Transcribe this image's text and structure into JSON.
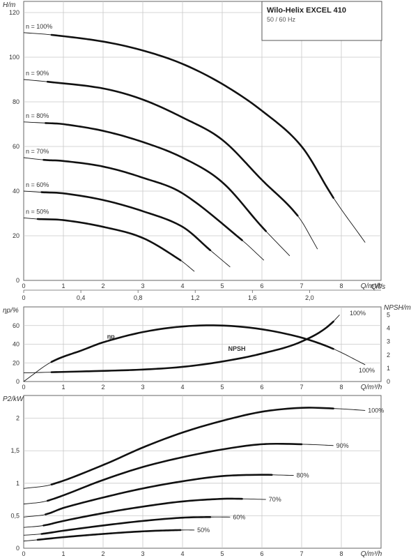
{
  "title_box": {
    "title": "Wilo-Helix EXCEL 410",
    "subtitle": "50 / 60 Hz"
  },
  "chart_data": [
    {
      "type": "line",
      "panel": "head",
      "ylabel": "H/m",
      "xlabel": "Q/m³/h",
      "x_ticks": [
        "0",
        "1",
        "2",
        "3",
        "4",
        "5",
        "6",
        "7",
        "8"
      ],
      "y_ticks": [
        "0",
        "20",
        "40",
        "60",
        "80",
        "100",
        "120"
      ],
      "secondary_x_label": "Q/l/s",
      "secondary_x_ticks": [
        "0",
        "0,4",
        "0,8",
        "1,2",
        "1,6",
        "2,0"
      ],
      "xlim": [
        0,
        9
      ],
      "ylim": [
        0,
        125
      ],
      "grid": true,
      "series": [
        {
          "name": "n = 100%",
          "x": [
            0,
            0.7,
            2,
            3,
            4,
            5,
            6,
            7,
            7.8,
            8.6
          ],
          "y": [
            111,
            110,
            107,
            103,
            97,
            88,
            76,
            60,
            37,
            17
          ],
          "bold_range": [
            0.7,
            7.8
          ]
        },
        {
          "name": "n = 90%",
          "x": [
            0,
            0.6,
            2,
            3,
            4,
            5,
            6,
            6.9,
            7.4
          ],
          "y": [
            90,
            89,
            86,
            81,
            73,
            63,
            45,
            29,
            14
          ],
          "bold_range": [
            0.6,
            6.9
          ]
        },
        {
          "name": "n = 80%",
          "x": [
            0,
            0.55,
            1,
            2,
            3,
            4,
            5,
            6,
            6.7
          ],
          "y": [
            71,
            70.5,
            70,
            67,
            62,
            55,
            44,
            24,
            11
          ],
          "bold_range": [
            0.55,
            6.1
          ]
        },
        {
          "name": "n = 70%",
          "x": [
            0,
            0.5,
            1,
            2,
            3,
            4,
            5.5,
            6.05
          ],
          "y": [
            55,
            54,
            53.5,
            51,
            46,
            39,
            18,
            9
          ],
          "bold_range": [
            0.5,
            5.5
          ]
        },
        {
          "name": "n = 60%",
          "x": [
            0,
            0.45,
            1,
            2,
            3,
            4,
            4.7,
            5.2
          ],
          "y": [
            40,
            39.5,
            39,
            36,
            31,
            24,
            13.5,
            6
          ],
          "bold_range": [
            0.45,
            4.7
          ]
        },
        {
          "name": "n = 50%",
          "x": [
            0,
            0.35,
            1,
            2,
            3,
            3.95,
            4.3
          ],
          "y": [
            28,
            27.5,
            27,
            24,
            19,
            9,
            4
          ],
          "bold_range": [
            0.35,
            3.95
          ]
        }
      ]
    },
    {
      "type": "line",
      "panel": "efficiency_npsh",
      "ylabel": "ηp/%",
      "ylabel_right": "NPSH/m",
      "xlabel": "Q/m³/h",
      "x_ticks": [
        "0",
        "1",
        "2",
        "3",
        "4",
        "5",
        "6",
        "7",
        "8"
      ],
      "y_ticks": [
        "0",
        "20",
        "40",
        "60"
      ],
      "y2_ticks": [
        "0",
        "1",
        "2",
        "3",
        "4",
        "5"
      ],
      "xlim": [
        0,
        9
      ],
      "ylim": [
        0,
        80
      ],
      "y2lim": [
        0,
        5.6
      ],
      "series": [
        {
          "name": "ηp",
          "axis": "left",
          "x": [
            0,
            0.7,
            1.5,
            2,
            3,
            4,
            5,
            6,
            7,
            7.8,
            8.6
          ],
          "y": [
            0,
            21,
            34,
            42,
            53,
            59,
            60,
            56,
            47,
            35,
            18
          ],
          "bold_range": [
            0.7,
            7.8
          ],
          "end_label": "100%"
        },
        {
          "name": "NPSH",
          "axis": "right",
          "x": [
            0,
            0.7,
            2,
            3,
            4,
            5,
            6,
            7,
            7.8,
            8.6
          ],
          "y": [
            0.65,
            0.7,
            0.8,
            0.9,
            1.1,
            1.5,
            2.1,
            3.0,
            4.5,
            7.6
          ],
          "bold_range": [
            0.7,
            7.8
          ],
          "end_label": "100%"
        }
      ]
    },
    {
      "type": "line",
      "panel": "power",
      "ylabel": "P2/kW",
      "xlabel": "Q/m³/h",
      "x_ticks": [
        "0",
        "1",
        "2",
        "3",
        "4",
        "5",
        "6",
        "7",
        "8"
      ],
      "y_ticks": [
        "0",
        "0,5",
        "1",
        "1,5",
        "2"
      ],
      "xlim": [
        0,
        9
      ],
      "ylim": [
        0,
        2.35
      ],
      "series": [
        {
          "name": "100%",
          "x": [
            0,
            0.7,
            2,
            3,
            4,
            5,
            6,
            7,
            7.8,
            8.6
          ],
          "y": [
            0.92,
            0.98,
            1.28,
            1.55,
            1.78,
            1.96,
            2.1,
            2.16,
            2.15,
            2.12
          ],
          "bold_range": [
            0.7,
            7.8
          ]
        },
        {
          "name": "90%",
          "x": [
            0,
            0.6,
            2,
            3,
            4,
            5,
            6,
            7,
            7.8
          ],
          "y": [
            0.68,
            0.73,
            1.05,
            1.25,
            1.4,
            1.52,
            1.6,
            1.6,
            1.58
          ],
          "bold_range": [
            0.6,
            7.0
          ]
        },
        {
          "name": "80%",
          "x": [
            0,
            0.55,
            1,
            2,
            3,
            4,
            5,
            6,
            6.8
          ],
          "y": [
            0.48,
            0.52,
            0.62,
            0.78,
            0.92,
            1.03,
            1.11,
            1.13,
            1.12
          ],
          "bold_range": [
            0.55,
            6.25
          ]
        },
        {
          "name": "70%",
          "x": [
            0,
            0.5,
            1,
            2,
            3,
            4,
            5,
            5.5,
            6.1
          ],
          "y": [
            0.32,
            0.35,
            0.42,
            0.54,
            0.64,
            0.72,
            0.76,
            0.76,
            0.75
          ],
          "bold_range": [
            0.5,
            5.5
          ]
        },
        {
          "name": "60%",
          "x": [
            0,
            0.45,
            1,
            2,
            3,
            4,
            4.7,
            5.2
          ],
          "y": [
            0.2,
            0.22,
            0.27,
            0.35,
            0.42,
            0.47,
            0.48,
            0.48
          ],
          "bold_range": [
            0.45,
            4.7
          ]
        },
        {
          "name": "50%",
          "x": [
            0,
            0.35,
            1,
            2,
            3,
            3.95,
            4.3
          ],
          "y": [
            0.11,
            0.13,
            0.17,
            0.22,
            0.26,
            0.28,
            0.28
          ],
          "bold_range": [
            0.35,
            3.95
          ]
        }
      ]
    }
  ]
}
